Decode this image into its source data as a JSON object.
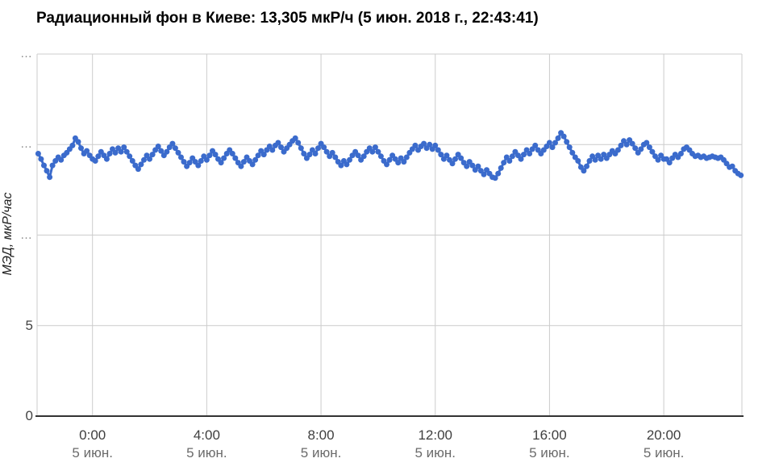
{
  "title": "Радиационный фон в Киеве: 13,305 мкР/ч (5 июн. 2018 г., 22:43:41)",
  "y_axis_title": "МЭД, мкР/час",
  "current_value": "13,305 мкР/ч",
  "current_timestamp": "5 июн. 2018 г., 22:43:41",
  "chart_data": {
    "type": "line",
    "title": "Радиационный фон в Киеве: 13,305 мкР/ч (5 июн. 2018 г., 22:43:41)",
    "ylabel": "МЭД, мкР/час",
    "xlabel": "",
    "ylim": [
      0,
      20
    ],
    "xlim_hours": [
      -1.94,
      22.77
    ],
    "grid": true,
    "legend_position": "none",
    "series_color": "#3b6bcc",
    "grid_color": "#cccccc",
    "axis_color": "#333333",
    "y_ticks": [
      {
        "value": 0,
        "label": "0"
      },
      {
        "value": 5,
        "label": "5"
      },
      {
        "value": 10,
        "label": "…"
      },
      {
        "value": 15,
        "label": "…"
      },
      {
        "value": 20,
        "label": "…"
      }
    ],
    "x_ticks": [
      {
        "hour": 0,
        "time": "0:00",
        "date": "5 июн."
      },
      {
        "hour": 4,
        "time": "4:00",
        "date": "5 июн."
      },
      {
        "hour": 8,
        "time": "8:00",
        "date": "5 июн."
      },
      {
        "hour": 12,
        "time": "12:00",
        "date": "5 июн."
      },
      {
        "hour": 16,
        "time": "16:00",
        "date": "5 июн."
      },
      {
        "hour": 20,
        "time": "20:00",
        "date": "5 июн."
      }
    ],
    "x_start_hours": -1.9,
    "x_step_hours": 0.1,
    "values": [
      14.5,
      14.2,
      13.85,
      13.55,
      13.2,
      13.85,
      14.1,
      14.3,
      14.15,
      14.4,
      14.55,
      14.75,
      14.95,
      15.35,
      15.15,
      14.8,
      14.5,
      14.65,
      14.4,
      14.2,
      14.1,
      14.35,
      14.6,
      14.4,
      14.2,
      14.5,
      14.75,
      14.55,
      14.8,
      14.6,
      14.85,
      14.6,
      14.35,
      14.1,
      13.85,
      13.65,
      13.9,
      14.15,
      14.4,
      14.2,
      14.45,
      14.7,
      14.9,
      14.65,
      14.4,
      14.6,
      14.85,
      15.05,
      14.8,
      14.55,
      14.3,
      14.05,
      13.8,
      14.0,
      14.25,
      14.05,
      13.85,
      14.1,
      14.35,
      14.15,
      14.4,
      14.65,
      14.45,
      14.2,
      14.0,
      14.25,
      14.5,
      14.7,
      14.5,
      14.25,
      14.0,
      13.8,
      14.05,
      14.3,
      14.1,
      13.9,
      14.15,
      14.4,
      14.65,
      14.45,
      14.7,
      14.9,
      14.7,
      14.95,
      15.1,
      14.85,
      14.6,
      14.8,
      15.0,
      15.2,
      15.35,
      15.1,
      14.8,
      14.5,
      14.25,
      14.45,
      14.7,
      14.5,
      14.8,
      15.05,
      14.85,
      14.6,
      14.35,
      14.55,
      14.3,
      14.05,
      13.85,
      14.1,
      13.9,
      14.15,
      14.4,
      14.6,
      14.4,
      14.15,
      14.35,
      14.6,
      14.8,
      14.6,
      14.85,
      14.6,
      14.35,
      14.1,
      13.9,
      14.15,
      14.4,
      14.2,
      14.0,
      14.25,
      14.05,
      14.3,
      14.55,
      14.75,
      14.95,
      14.7,
      14.9,
      15.05,
      14.8,
      15.0,
      14.75,
      14.95,
      14.7,
      14.45,
      14.2,
      14.4,
      14.15,
      13.95,
      14.2,
      14.45,
      14.25,
      14.0,
      13.8,
      14.05,
      13.85,
      13.6,
      13.8,
      13.55,
      13.35,
      13.6,
      13.4,
      13.2,
      13.15,
      13.4,
      13.7,
      14.0,
      14.3,
      14.1,
      14.35,
      14.6,
      14.4,
      14.2,
      14.45,
      14.7,
      14.5,
      14.75,
      14.95,
      14.7,
      14.5,
      14.7,
      14.9,
      15.1,
      14.85,
      15.1,
      15.35,
      15.65,
      15.45,
      15.15,
      14.85,
      14.55,
      14.3,
      14.1,
      13.75,
      13.55,
      13.8,
      14.1,
      14.35,
      14.15,
      14.4,
      14.2,
      14.45,
      14.25,
      14.45,
      14.65,
      14.5,
      14.7,
      14.95,
      15.2,
      15.0,
      15.25,
      15.05,
      14.8,
      14.55,
      14.75,
      15.0,
      15.1,
      14.85,
      14.6,
      14.35,
      14.15,
      14.4,
      14.2,
      14.2,
      14.0,
      14.25,
      14.45,
      14.3,
      14.5,
      14.75,
      14.85,
      14.7,
      14.5,
      14.35,
      14.4,
      14.3,
      14.35,
      14.25,
      14.3,
      14.35,
      14.3,
      14.25,
      14.3,
      14.15,
      13.95,
      13.75,
      13.8,
      13.55,
      13.4,
      13.3
    ]
  }
}
